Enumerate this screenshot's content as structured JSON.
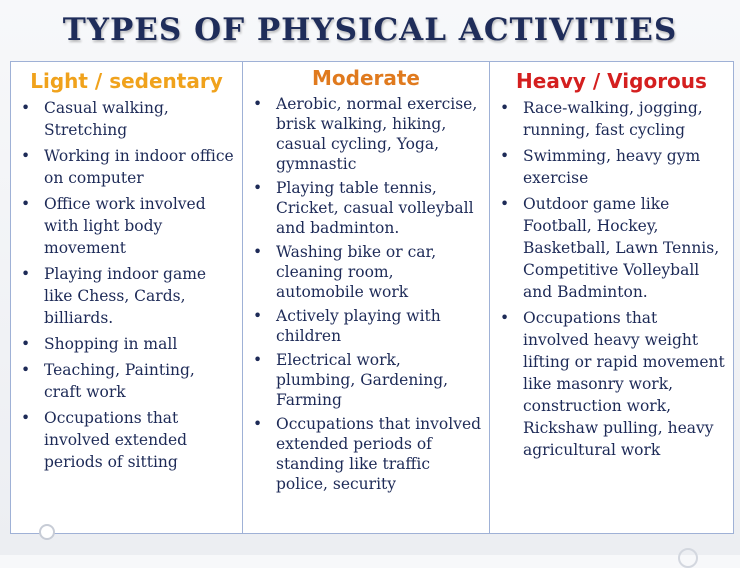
{
  "title": "TYPES  OF  PHYSICAL  ACTIVITIES",
  "colors": {
    "title": "#1f2d5a",
    "light": "#f0a21c",
    "moderate": "#e07a1e",
    "heavy": "#d41f1f",
    "text": "#1d2a57"
  },
  "columns": [
    {
      "heading": "Light / sedentary",
      "items": [
        "Casual walking, Stretching",
        "Working in indoor office on computer",
        "Office work involved with light body movement",
        "Playing indoor game like Chess, Cards, billiards.",
        "Shopping in mall",
        "Teaching, Painting, craft work",
        "Occupations  that involved extended periods of sitting"
      ]
    },
    {
      "heading": "Moderate",
      "items": [
        "Aerobic, normal exercise, brisk walking, hiking, casual cycling, Yoga, gymnastic",
        "Playing table tennis, Cricket, casual volleyball and badminton.",
        "Washing bike or car, cleaning room, automobile work",
        "Actively playing with children",
        "Electrical work, plumbing, Gardening, Farming",
        "Occupations that involved extended periods of standing like traffic police, security"
      ]
    },
    {
      "heading": "Heavy / Vigorous",
      "items": [
        "Race-walking, jogging, running, fast cycling",
        "Swimming, heavy gym exercise",
        "Outdoor game like Football, Hockey, Basketball, Lawn Tennis, Competitive Volleyball and Badminton.",
        "Occupations that involved heavy weight lifting or rapid movement like masonry work, construction work, Rickshaw pulling, heavy agricultural work"
      ]
    }
  ]
}
